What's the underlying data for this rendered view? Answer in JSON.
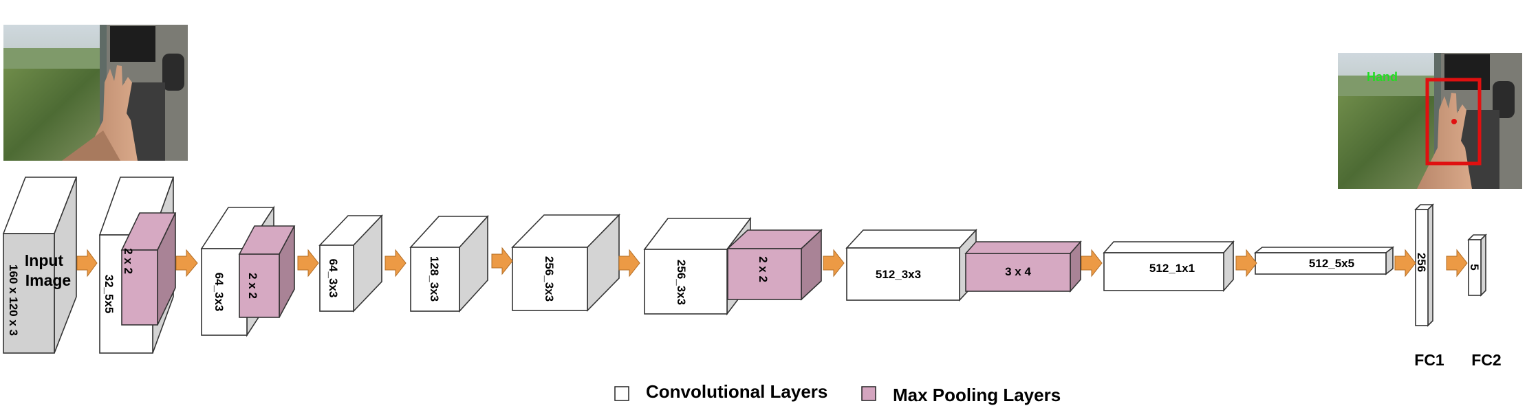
{
  "diagram": {
    "input_layer": {
      "lines": [
        "Input",
        "Image"
      ],
      "dimension": "160 x 120 x 3"
    },
    "layers": [
      {
        "label": "32_5x5",
        "type": "conv"
      },
      {
        "label": "2 x 2",
        "type": "pool"
      },
      {
        "label": "64_3x3",
        "type": "conv"
      },
      {
        "label": "2 x 2",
        "type": "pool"
      },
      {
        "label": "64_3x3",
        "type": "conv"
      },
      {
        "label": "128_3x3",
        "type": "conv"
      },
      {
        "label": "256_3x3",
        "type": "conv"
      },
      {
        "label": "256_3x3",
        "type": "conv"
      },
      {
        "label": "2 x 2",
        "type": "pool"
      },
      {
        "label": "512_3x3",
        "type": "conv"
      },
      {
        "label": "3 x 4",
        "type": "pool"
      },
      {
        "label": "512_1x1",
        "type": "conv"
      },
      {
        "label": "512_5x5",
        "type": "conv"
      },
      {
        "label": "256",
        "type": "fc"
      },
      {
        "label": "5",
        "type": "fc"
      }
    ],
    "fc_labels": [
      "FC1",
      "FC2"
    ],
    "output_image": {
      "detection_label": "Hand",
      "box_color": "#e01010",
      "label_color": "#22dd22"
    },
    "legend": [
      {
        "label": "Convolutional Layers",
        "color": "#ffffff"
      },
      {
        "label": "Max Pooling Layers",
        "color": "#d4a5bf"
      }
    ],
    "colors": {
      "conv_front": "#ffffff",
      "conv_side": "#d4d4d4",
      "pool_front": "#d6a9c2",
      "pool_side": "#a98396",
      "input_front": "#d1d1d1",
      "arrow": "#ec9a45"
    }
  }
}
